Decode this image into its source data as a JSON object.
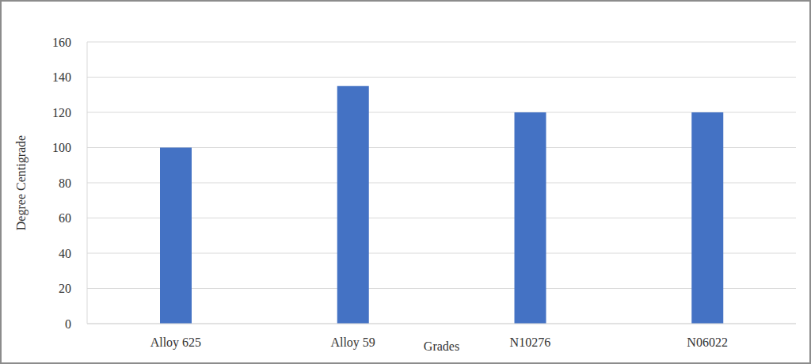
{
  "chart_data": {
    "type": "bar",
    "categories": [
      "Alloy 625",
      "Alloy 59",
      "N10276",
      "N06022"
    ],
    "values": [
      100,
      135,
      120,
      120
    ],
    "color": "#4472c4",
    "x_label": "Grades",
    "y_label": "Degree Centigrade",
    "ylim": [
      0,
      160
    ],
    "yticks": [
      0,
      20,
      40,
      60,
      80,
      100,
      120,
      140,
      160
    ],
    "grid": true
  }
}
